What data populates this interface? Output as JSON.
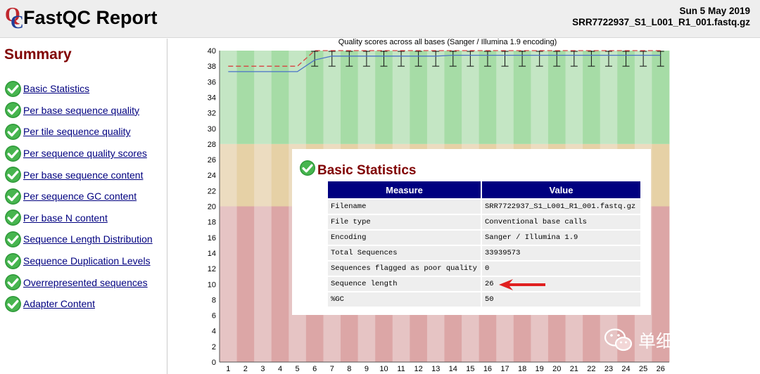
{
  "header": {
    "title": "FastQC Report",
    "date": "Sun 5 May 2019",
    "filename": "SRR7722937_S1_L001_R1_001.fastq.gz"
  },
  "sidebar": {
    "title": "Summary",
    "items": [
      {
        "label": "Basic Statistics",
        "status": "pass"
      },
      {
        "label": "Per base sequence quality",
        "status": "pass"
      },
      {
        "label": "Per tile sequence quality",
        "status": "pass"
      },
      {
        "label": "Per sequence quality scores",
        "status": "pass"
      },
      {
        "label": "Per base sequence content",
        "status": "pass"
      },
      {
        "label": "Per sequence GC content",
        "status": "pass"
      },
      {
        "label": "Per base N content",
        "status": "pass"
      },
      {
        "label": "Sequence Length Distribution",
        "status": "pass"
      },
      {
        "label": "Sequence Duplication Levels",
        "status": "pass"
      },
      {
        "label": "Overrepresented sequences",
        "status": "pass"
      },
      {
        "label": "Adapter Content",
        "status": "pass"
      }
    ]
  },
  "chart_data": {
    "type": "line",
    "title": "Quality scores across all bases (Sanger / Illumina 1.9 encoding)",
    "x": [
      1,
      2,
      3,
      4,
      5,
      6,
      7,
      8,
      9,
      10,
      11,
      12,
      13,
      14,
      15,
      16,
      17,
      18,
      19,
      20,
      21,
      22,
      23,
      24,
      25,
      26
    ],
    "ylim": [
      0,
      40
    ],
    "yticks": [
      0,
      2,
      4,
      6,
      8,
      10,
      12,
      14,
      16,
      18,
      20,
      22,
      24,
      26,
      28,
      30,
      32,
      34,
      36,
      38,
      40
    ],
    "zones": [
      {
        "from": 28,
        "to": 40,
        "colors": [
          "#c4e6c4",
          "#a6dca6"
        ]
      },
      {
        "from": 20,
        "to": 28,
        "colors": [
          "#ecdcc0",
          "#e6d1a6"
        ]
      },
      {
        "from": 0,
        "to": 20,
        "colors": [
          "#e6c4c4",
          "#dca6a6"
        ]
      }
    ],
    "series": [
      {
        "role": "mean",
        "color": "#4a72c8",
        "values": [
          37.3,
          37.3,
          37.3,
          37.3,
          37.3,
          38.8,
          39.3,
          39.3,
          39.3,
          39.3,
          39.3,
          39.3,
          39.3,
          39.4,
          39.4,
          39.4,
          39.4,
          39.4,
          39.4,
          39.4,
          39.4,
          39.4,
          39.4,
          39.4,
          39.4,
          39.4
        ]
      },
      {
        "role": "median",
        "color": "#d84040",
        "values": [
          38,
          38,
          38,
          38,
          38,
          40,
          40,
          40,
          40,
          40,
          40,
          40,
          40,
          40,
          40,
          40,
          40,
          40,
          40,
          40,
          40,
          40,
          40,
          40,
          40,
          40
        ]
      }
    ],
    "whiskers": {
      "from_base": 6,
      "low": 38,
      "high": 40
    }
  },
  "basic_statistics": {
    "title": "Basic Statistics",
    "columns": [
      "Measure",
      "Value"
    ],
    "rows": [
      [
        "Filename",
        "SRR7722937_S1_L001_R1_001.fastq.gz"
      ],
      [
        "File type",
        "Conventional base calls"
      ],
      [
        "Encoding",
        "Sanger / Illumina 1.9"
      ],
      [
        "Total Sequences",
        "33939573"
      ],
      [
        "Sequences flagged as poor quality",
        "0"
      ],
      [
        "Sequence length",
        "26"
      ],
      [
        "%GC",
        "50"
      ]
    ]
  },
  "annotation": {
    "color": "#e02020",
    "points_to_row": "Sequence length"
  },
  "watermark": {
    "text": "单细胞天地",
    "icon": "wechat-icon"
  }
}
